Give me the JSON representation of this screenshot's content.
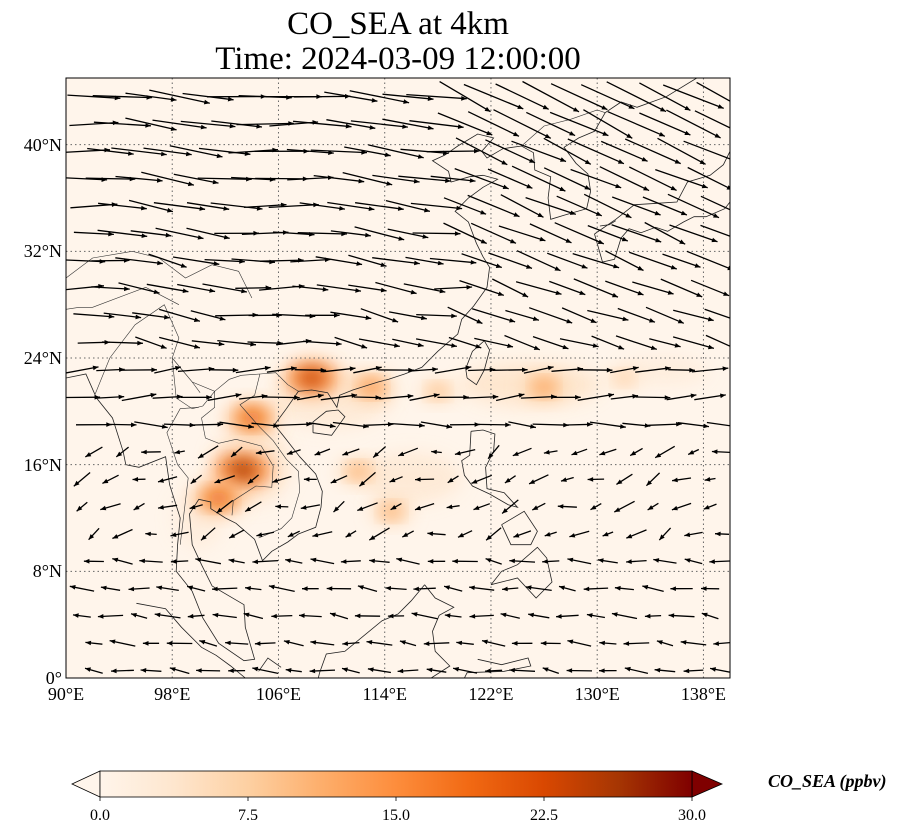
{
  "title_line1": "CO_SEA at 4km",
  "title_line2": "Time: 2024-03-09 12:00:00",
  "map": {
    "lon_range": [
      90,
      140
    ],
    "lat_range": [
      0,
      45
    ],
    "lat_ticks": [
      {
        "value": 0,
        "label": "0°"
      },
      {
        "value": 8,
        "label": "8°N"
      },
      {
        "value": 16,
        "label": "16°N"
      },
      {
        "value": 24,
        "label": "24°N"
      },
      {
        "value": 32,
        "label": "32°N"
      },
      {
        "value": 40,
        "label": "40°N"
      }
    ],
    "lon_ticks": [
      {
        "value": 90,
        "label": "90°E"
      },
      {
        "value": 98,
        "label": "98°E"
      },
      {
        "value": 106,
        "label": "106°E"
      },
      {
        "value": 114,
        "label": "114°E"
      },
      {
        "value": 122,
        "label": "122°E"
      },
      {
        "value": 130,
        "label": "130°E"
      },
      {
        "value": 138,
        "label": "138°E"
      }
    ],
    "gridlines": true,
    "plume_hotspots": [
      {
        "lon": 108.5,
        "lat": 22.5,
        "value": 24
      },
      {
        "lon": 103.3,
        "lat": 15.6,
        "value": 26
      },
      {
        "lon": 104.0,
        "lat": 19.5,
        "value": 20
      },
      {
        "lon": 101.5,
        "lat": 13.5,
        "value": 20
      },
      {
        "lon": 113.0,
        "lat": 21.8,
        "value": 15
      },
      {
        "lon": 126.0,
        "lat": 21.8,
        "value": 14
      },
      {
        "lon": 118.0,
        "lat": 21.5,
        "value": 10
      },
      {
        "lon": 112.0,
        "lat": 15.5,
        "value": 12
      },
      {
        "lon": 114.5,
        "lat": 12.5,
        "value": 12
      },
      {
        "lon": 132.0,
        "lat": 22.5,
        "value": 8
      }
    ]
  },
  "colorbar": {
    "label": "CO_SEA (ppbv)",
    "ticks": [
      "0.0",
      "7.5",
      "15.0",
      "22.5",
      "30.0"
    ],
    "min": 0,
    "max": 30,
    "colors": [
      "#fff5eb",
      "#fee6ce",
      "#fdd0a2",
      "#fdae6b",
      "#fd8d3c",
      "#f16913",
      "#d94801",
      "#a63603",
      "#7f0000"
    ]
  }
}
